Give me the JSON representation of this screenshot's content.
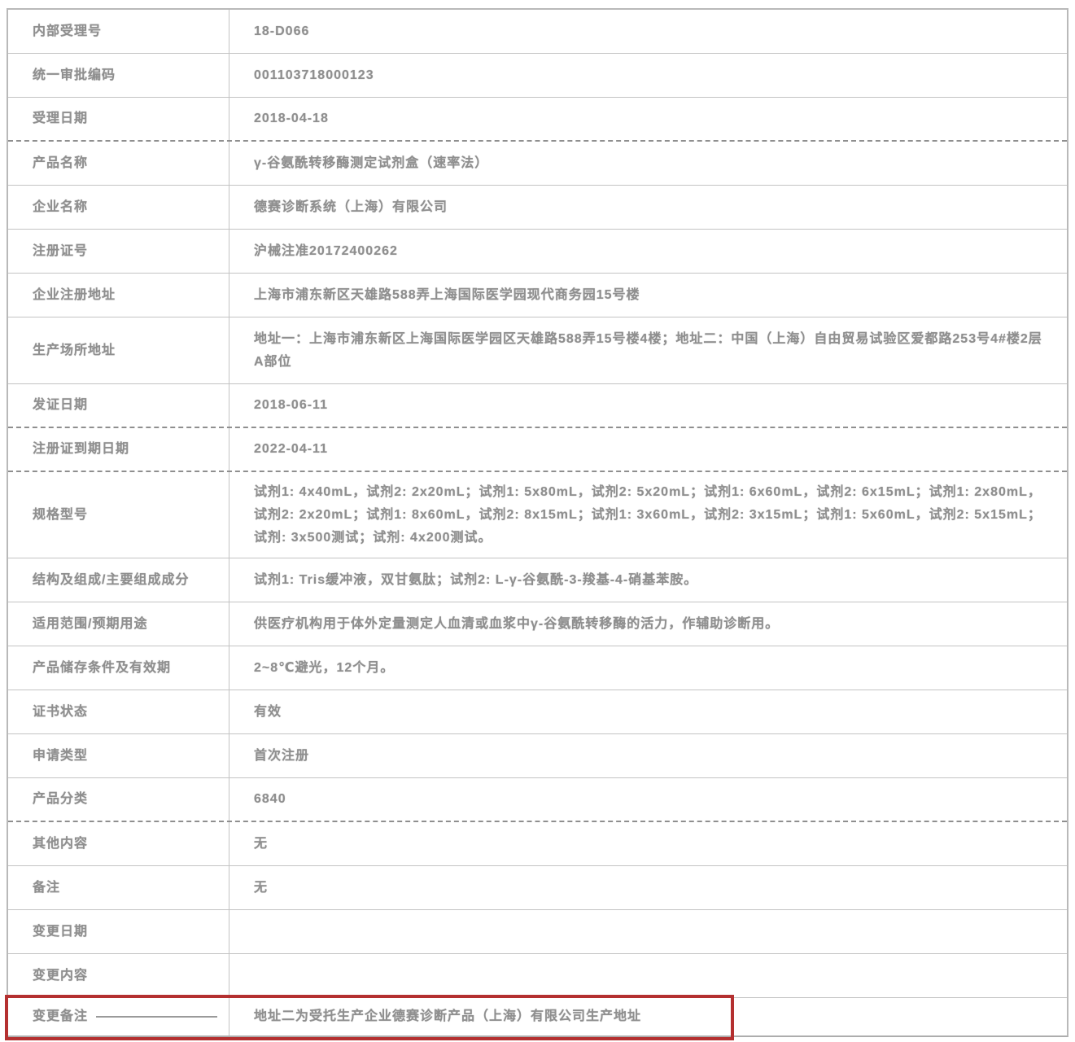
{
  "page": {
    "background_color": "#ffffff",
    "text_color": "#8f8f8f",
    "border_color": "#c3c3c3",
    "highlight_box_color": "#b43030"
  },
  "table": {
    "rows": [
      {
        "label": "内部受理号",
        "value": "18-D066"
      },
      {
        "label": "统一审批编码",
        "value": "001103718000123"
      },
      {
        "label": "受理日期",
        "value": "2018-04-18",
        "divider": "dashed"
      },
      {
        "label": "产品名称",
        "value": "γ-谷氨酰转移酶测定试剂盒（速率法）"
      },
      {
        "label": "企业名称",
        "value": "德赛诊断系统（上海）有限公司"
      },
      {
        "label": "注册证号",
        "value": "沪械注准20172400262"
      },
      {
        "label": "企业注册地址",
        "value": "上海市浦东新区天雄路588弄上海国际医学园现代商务园15号楼"
      },
      {
        "label": "生产场所地址",
        "value": "地址一：上海市浦东新区上海国际医学园区天雄路588弄15号楼4楼；地址二：中国（上海）自由贸易试验区爱都路253号4#楼2层A部位",
        "lines": 2
      },
      {
        "label": "发证日期",
        "value": "2018-06-11",
        "divider": "dashed"
      },
      {
        "label": "注册证到期日期",
        "value": "2022-04-11",
        "divider": "dashed"
      },
      {
        "label": "规格型号",
        "value": "试剂1: 4x40mL，试剂2: 2x20mL；试剂1: 5x80mL，试剂2: 5x20mL；试剂1: 6x60mL，试剂2: 6x15mL；试剂1: 2x80mL，试剂2: 2x20mL；试剂1: 8x60mL，试剂2: 8x15mL；试剂1: 3x60mL，试剂2: 3x15mL；试剂1: 5x60mL，试剂2: 5x15mL；试剂: 3x500测试；试剂: 4x200测试。",
        "lines": 3
      },
      {
        "label": "结构及组成/主要组成成分",
        "value": "试剂1: Tris缓冲液，双甘氨肽；试剂2: L-γ-谷氨酰-3-羧基-4-硝基苯胺。"
      },
      {
        "label": "适用范围/预期用途",
        "value": "供医疗机构用于体外定量测定人血清或血浆中γ-谷氨酰转移酶的活力，作辅助诊断用。"
      },
      {
        "label": "产品储存条件及有效期",
        "value": "2~8℃避光，12个月。"
      },
      {
        "label": "证书状态",
        "value": "有效"
      },
      {
        "label": "申请类型",
        "value": "首次注册"
      },
      {
        "label": "产品分类",
        "value": "6840",
        "divider": "dashed"
      },
      {
        "label": "其他内容",
        "value": "无"
      },
      {
        "label": "备注",
        "value": "无"
      },
      {
        "label": "变更日期",
        "value": ""
      },
      {
        "label": "变更内容",
        "value": ""
      },
      {
        "label": "变更备注",
        "value": "地址二为受托生产企业德赛诊断产品（上海）有限公司生产地址",
        "highlight": true
      }
    ]
  }
}
